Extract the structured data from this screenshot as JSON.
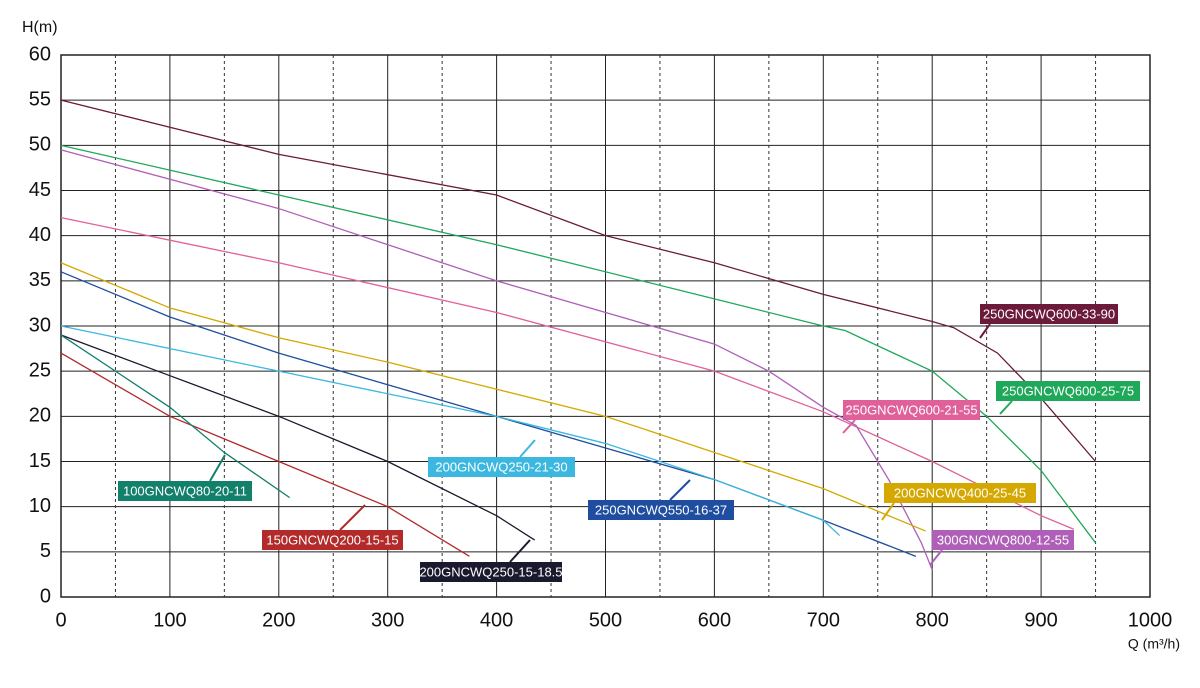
{
  "chart_data": {
    "type": "line",
    "y_label": "H(m)",
    "x_label": "Q (m³/h)",
    "xlim": [
      0,
      1000
    ],
    "xticks": [
      0,
      100,
      200,
      300,
      400,
      500,
      600,
      700,
      800,
      900,
      1000
    ],
    "xminor": [
      50,
      150,
      250,
      350,
      450,
      550,
      650,
      750,
      850,
      950
    ],
    "ylim": [
      0,
      60
    ],
    "yticks": [
      0,
      5,
      10,
      15,
      20,
      25,
      30,
      35,
      40,
      45,
      50,
      55,
      60
    ],
    "grid": true,
    "series": [
      {
        "name": "250GNCWQ600-33-90",
        "color": "#6b1a3a",
        "x": [
          0,
          200,
          400,
          500,
          600,
          700,
          800,
          820,
          860,
          900,
          950
        ],
        "values": [
          55,
          49,
          44.5,
          40,
          37,
          33.5,
          30.5,
          29.8,
          27,
          22,
          15
        ]
      },
      {
        "name": "250GNCWQ600-25-75",
        "color": "#1fa85a",
        "x": [
          0,
          200,
          400,
          600,
          700,
          720,
          800,
          850,
          900,
          950
        ],
        "values": [
          50,
          44.5,
          39,
          33,
          30,
          29.5,
          25,
          20,
          14,
          6
        ]
      },
      {
        "name": "250GNCWQ600-21-55",
        "color": "#e0609a",
        "x": [
          0,
          200,
          400,
          600,
          700,
          800,
          900,
          930
        ],
        "values": [
          42,
          37,
          31.5,
          25,
          20.5,
          15,
          9,
          7.5
        ]
      },
      {
        "name": "300GNCWQ800-12-55",
        "color": "#b05fb8",
        "x": [
          0,
          200,
          400,
          600,
          650,
          700,
          730,
          760,
          790,
          800
        ],
        "values": [
          49.5,
          43,
          35,
          28,
          25,
          21,
          19,
          13,
          6,
          3
        ]
      },
      {
        "name": "200GNCWQ400-25-45",
        "color": "#d4a800",
        "x": [
          0,
          100,
          200,
          300,
          400,
          500,
          600,
          700,
          794
        ],
        "values": [
          37,
          32,
          28.7,
          26,
          23,
          20,
          16,
          12,
          7.3
        ]
      },
      {
        "name": "250GNCWQ550-16-37",
        "color": "#1f4ea0",
        "x": [
          0,
          100,
          200,
          300,
          400,
          500,
          600,
          700,
          785
        ],
        "values": [
          36,
          31,
          27,
          23.5,
          20,
          16.5,
          13,
          8.5,
          4.5
        ]
      },
      {
        "name": "200GNCWQ250-21-30",
        "color": "#3bb8e0",
        "x": [
          0,
          200,
          400,
          500,
          600,
          700,
          715
        ],
        "values": [
          30,
          25,
          20,
          17,
          13,
          8.5,
          6.8
        ]
      },
      {
        "name": "200GNCWQ250-15-18.5",
        "color": "#1a1a2e",
        "x": [
          0,
          100,
          200,
          300,
          400,
          435
        ],
        "values": [
          29,
          24.5,
          20,
          15,
          9,
          6.3
        ]
      },
      {
        "name": "150GNCWQ200-15-15",
        "color": "#b22a2a",
        "x": [
          0,
          100,
          200,
          300,
          375
        ],
        "values": [
          27,
          20,
          15,
          10,
          4.5
        ]
      },
      {
        "name": "100GNCWQ80-20-11",
        "color": "#12806b",
        "x": [
          0,
          100,
          150,
          210
        ],
        "values": [
          29,
          21,
          16,
          11
        ]
      }
    ]
  }
}
